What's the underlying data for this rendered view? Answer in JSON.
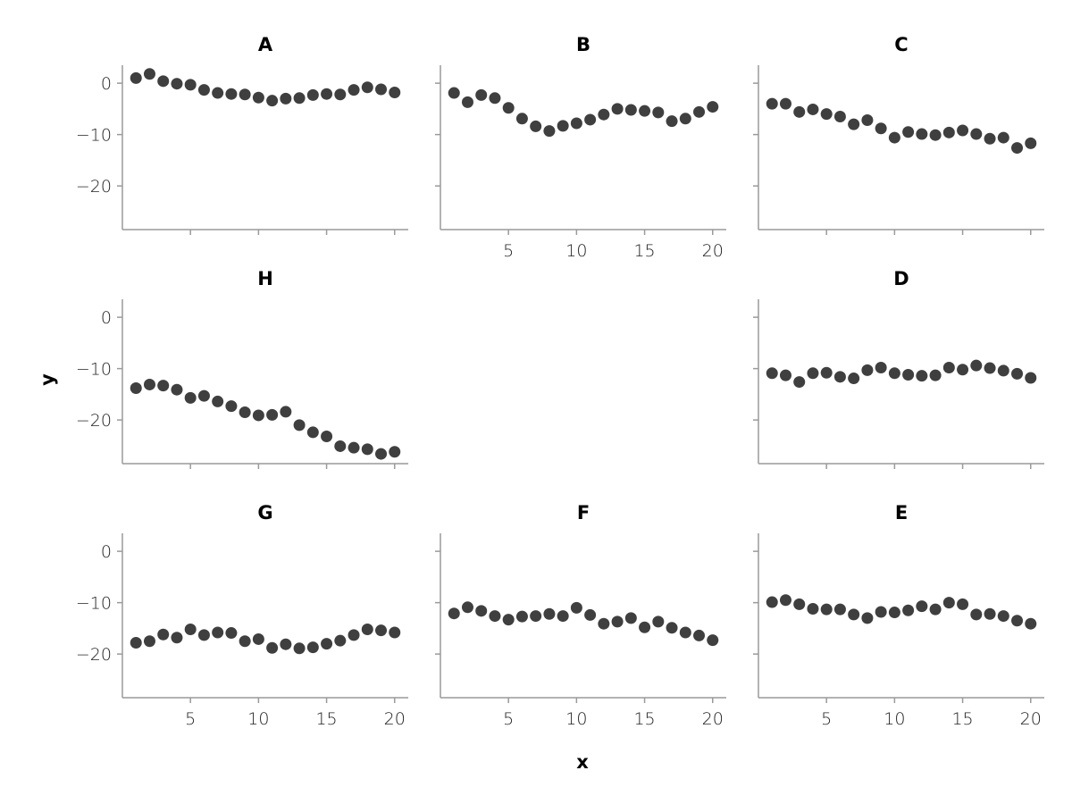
{
  "chart_data": {
    "type": "scatter",
    "xlabel": "x",
    "ylabel": "y",
    "xlim": [
      0,
      21
    ],
    "ylim": [
      -28.5,
      3.5
    ],
    "xticks": [
      5,
      10,
      15,
      20
    ],
    "yticks": [
      0,
      -10,
      -20
    ],
    "grid": false,
    "colors": {
      "point": "#3f3f3f",
      "axis": "#9a9a9a"
    },
    "x": [
      1,
      2,
      3,
      4,
      5,
      6,
      7,
      8,
      9,
      10,
      11,
      12,
      13,
      14,
      15,
      16,
      17,
      18,
      19,
      20
    ],
    "panels": [
      {
        "title": "A",
        "row": 0,
        "col": 0,
        "y": [
          1.0,
          1.8,
          0.4,
          -0.1,
          -0.3,
          -1.3,
          -1.9,
          -2.1,
          -2.2,
          -2.8,
          -3.4,
          -3.0,
          -2.9,
          -2.3,
          -2.1,
          -2.2,
          -1.3,
          -0.8,
          -1.2,
          -1.8
        ]
      },
      {
        "title": "B",
        "row": 0,
        "col": 1,
        "y": [
          -1.9,
          -3.7,
          -2.3,
          -2.9,
          -4.8,
          -6.9,
          -8.4,
          -9.3,
          -8.3,
          -7.8,
          -7.1,
          -6.1,
          -5.0,
          -5.2,
          -5.4,
          -5.7,
          -7.4,
          -6.9,
          -5.6,
          -4.6
        ]
      },
      {
        "title": "C",
        "row": 0,
        "col": 2,
        "y": [
          -4.0,
          -4.0,
          -5.6,
          -5.1,
          -6.0,
          -6.5,
          -8.0,
          -7.2,
          -8.8,
          -10.6,
          -9.5,
          -9.9,
          -10.1,
          -9.6,
          -9.2,
          -9.9,
          -10.8,
          -10.6,
          -12.6,
          -11.7
        ]
      },
      {
        "title": "H",
        "row": 1,
        "col": 0,
        "y": [
          -13.8,
          -13.1,
          -13.3,
          -14.1,
          -15.7,
          -15.3,
          -16.4,
          -17.3,
          -18.5,
          -19.1,
          -19.0,
          -18.4,
          -21.0,
          -22.4,
          -23.2,
          -25.1,
          -25.4,
          -25.7,
          -26.6,
          -26.2
        ]
      },
      {
        "title": "D",
        "row": 1,
        "col": 2,
        "y": [
          -10.9,
          -11.3,
          -12.6,
          -10.9,
          -10.8,
          -11.6,
          -11.9,
          -10.3,
          -9.8,
          -10.9,
          -11.2,
          -11.4,
          -11.3,
          -9.8,
          -10.2,
          -9.4,
          -9.9,
          -10.4,
          -11.0,
          -11.8
        ]
      },
      {
        "title": "G",
        "row": 2,
        "col": 0,
        "y": [
          -17.8,
          -17.5,
          -16.2,
          -16.8,
          -15.2,
          -16.3,
          -15.8,
          -15.9,
          -17.5,
          -17.1,
          -18.8,
          -18.1,
          -18.9,
          -18.7,
          -18.0,
          -17.4,
          -16.3,
          -15.2,
          -15.4,
          -15.8
        ]
      },
      {
        "title": "F",
        "row": 2,
        "col": 1,
        "y": [
          -12.1,
          -10.9,
          -11.6,
          -12.6,
          -13.3,
          -12.7,
          -12.6,
          -12.2,
          -12.6,
          -11.0,
          -12.4,
          -14.1,
          -13.7,
          -13.0,
          -14.8,
          -13.7,
          -14.9,
          -15.8,
          -16.4,
          -17.3
        ]
      },
      {
        "title": "E",
        "row": 2,
        "col": 2,
        "y": [
          -9.9,
          -9.5,
          -10.3,
          -11.2,
          -11.3,
          -11.3,
          -12.3,
          -13.0,
          -11.8,
          -11.9,
          -11.5,
          -10.7,
          -11.3,
          -10.0,
          -10.3,
          -12.3,
          -12.2,
          -12.6,
          -13.5,
          -14.1
        ]
      }
    ]
  }
}
